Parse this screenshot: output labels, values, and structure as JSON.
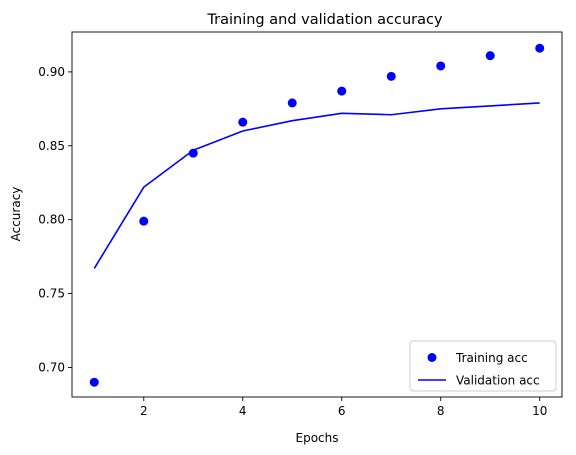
{
  "chart_data": {
    "type": "scatter",
    "title": "Training and validation accuracy",
    "xlabel": "Epochs",
    "ylabel": "Accuracy",
    "xlim": [
      0.55,
      10.45
    ],
    "ylim": [
      0.68,
      0.927
    ],
    "x_ticks": [
      2,
      4,
      6,
      8,
      10
    ],
    "x_tick_labels": [
      "2",
      "4",
      "6",
      "8",
      "10"
    ],
    "y_ticks": [
      0.7,
      0.75,
      0.8,
      0.85,
      0.9
    ],
    "y_tick_labels": [
      "0.70",
      "0.75",
      "0.80",
      "0.85",
      "0.90"
    ],
    "grid": false,
    "legend_position": "lower-right",
    "series": [
      {
        "name": "Training acc",
        "style": "markers",
        "color": "#0000ff",
        "x": [
          1,
          2,
          3,
          4,
          5,
          6,
          7,
          8,
          9,
          10
        ],
        "y": [
          0.69,
          0.799,
          0.845,
          0.866,
          0.879,
          0.887,
          0.897,
          0.904,
          0.911,
          0.916
        ]
      },
      {
        "name": "Validation acc",
        "style": "line",
        "color": "#0000ff",
        "x": [
          1,
          2,
          3,
          4,
          5,
          6,
          7,
          8,
          9,
          10
        ],
        "y": [
          0.767,
          0.822,
          0.847,
          0.86,
          0.867,
          0.872,
          0.871,
          0.875,
          0.877,
          0.879
        ]
      }
    ]
  }
}
